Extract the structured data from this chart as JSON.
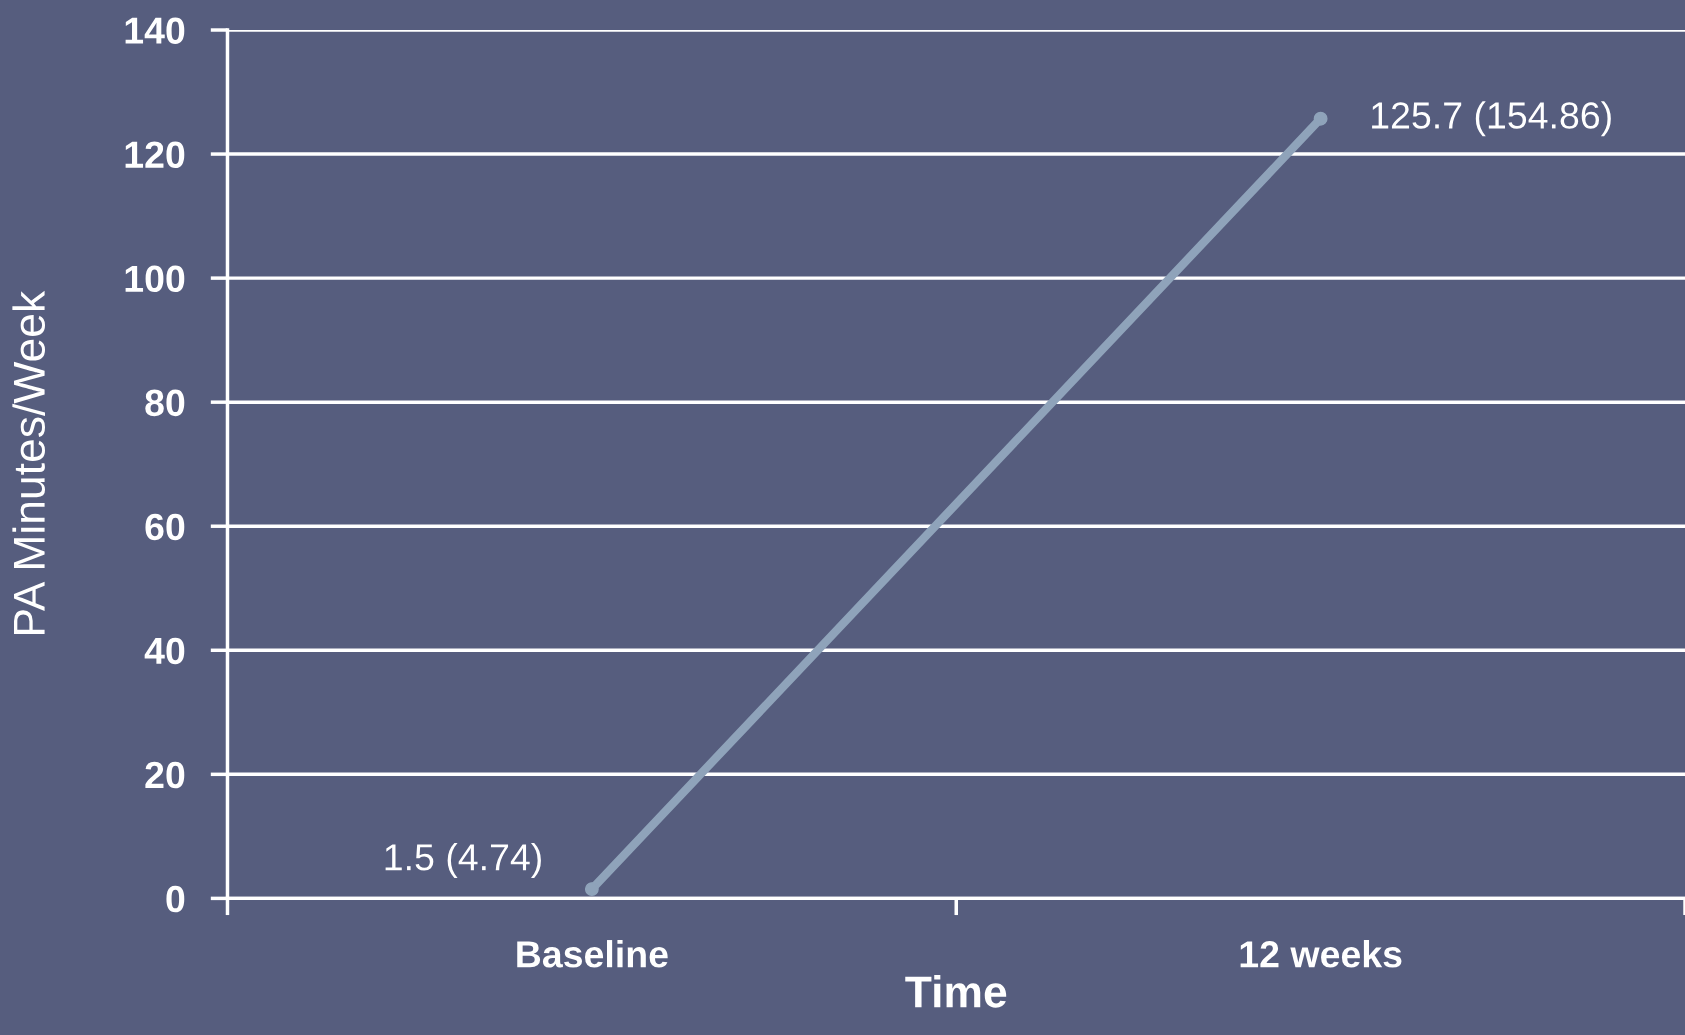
{
  "chart_data": {
    "type": "line",
    "xlabel": "Time",
    "ylabel": "PA Minutes/Week",
    "categories": [
      "Baseline",
      "12 weeks"
    ],
    "series": [
      {
        "color": "#8fa3ba",
        "values": [
          1.5,
          125.7
        ],
        "value_labels": [
          "1.5 (4.74)",
          "125.7 (154.86)"
        ]
      }
    ],
    "ylim": [
      0,
      140
    ],
    "yticks": [
      0,
      20,
      40,
      60,
      80,
      100,
      120,
      140
    ],
    "grid": "y",
    "legend": false,
    "marker": "circle",
    "line_style": "solid"
  }
}
